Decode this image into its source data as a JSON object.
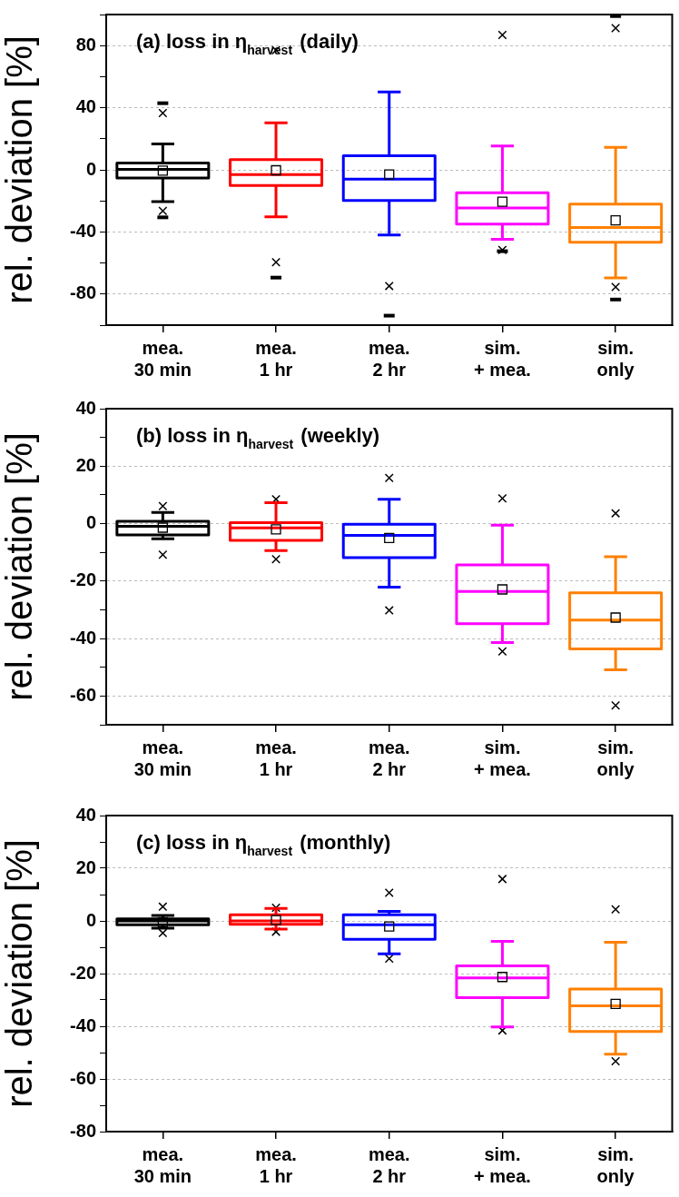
{
  "chart_data": [
    {
      "type": "box",
      "title": "(a) loss in η$_{harvest}$ (daily)",
      "ylabel": "rel. deviation [%]",
      "categories": [
        "mea.\n30 min",
        "mea.\n1 hr",
        "mea.\n2 hr",
        "sim.\n+ mea.",
        "sim.\nonly"
      ],
      "colors": [
        "#000000",
        "#ff0000",
        "#0000ff",
        "#ff00ff",
        "#ff8000"
      ],
      "grid": "y",
      "ylim": [
        -100,
        100
      ],
      "yticks": [
        {
          "value": -100,
          "label": null
        },
        -80,
        {
          "value": -60,
          "label": null
        },
        -40,
        {
          "value": -20,
          "label": null
        },
        0,
        {
          "value": 20,
          "label": null
        },
        40,
        {
          "value": 60,
          "label": null
        },
        80,
        {
          "value": 100,
          "label": null
        }
      ],
      "boxes": [
        {
          "low": -20.5,
          "q1": -5.2,
          "median": 0.3,
          "q3": 4.4,
          "high": 16.7,
          "mean": -0.5,
          "outliers": [
            42.9,
            -30.6
          ]
        },
        {
          "low": -30.3,
          "q1": -10.1,
          "median": -3,
          "q3": 6.6,
          "high": 30.3,
          "mean": -0.3,
          "outliers": [
            -69.4
          ]
        },
        {
          "low": -42,
          "q1": -19.7,
          "median": -6,
          "q3": 9,
          "high": 50.2,
          "mean": -3,
          "outliers": [
            -93.9
          ]
        },
        {
          "low": -44.8,
          "q1": -35,
          "median": -24.6,
          "q3": -14.7,
          "high": 15.3,
          "mean": -20.5,
          "outliers": [
            -52.4
          ]
        },
        {
          "low": -69.6,
          "q1": -46.7,
          "median": -37.1,
          "q3": -22.1,
          "high": 14.5,
          "mean": -32.5,
          "outliers": [
            99,
            -83.5
          ]
        }
      ],
      "series": [
        {
          "type": "scatter",
          "color": "#000000",
          "marker": "cross",
          "x": [
            "mea.\n30 min",
            "mea.\n30 min",
            "mea.\n1 hr",
            "mea.\n1 hr",
            "mea.\n2 hr",
            "sim.\n+ mea.",
            "sim.\n+ mea.",
            "sim.\nonly",
            "sim.\nonly"
          ],
          "values": [
            36.6,
            -26.5,
            77,
            -59.5,
            -74.8,
            86.8,
            -51.6,
            91.2,
            -75.4
          ]
        }
      ]
    },
    {
      "type": "box",
      "title": "(b) loss in η$_{harvest}$ (weekly)",
      "ylabel": "rel. deviation [%]",
      "categories": [
        "mea.\n30 min",
        "mea.\n1 hr",
        "mea.\n2 hr",
        "sim.\n+ mea.",
        "sim.\nonly"
      ],
      "colors": [
        "#000000",
        "#ff0000",
        "#0000ff",
        "#ff00ff",
        "#ff8000"
      ],
      "grid": "y",
      "ylim": [
        -70,
        40
      ],
      "yticks": [
        {
          "value": -70,
          "label": null
        },
        -60,
        {
          "value": -50,
          "label": null
        },
        -40,
        {
          "value": -30,
          "label": null
        },
        -20,
        {
          "value": -10,
          "label": null
        },
        0,
        {
          "value": 10,
          "label": null
        },
        20,
        {
          "value": 30,
          "label": null
        },
        40
      ],
      "boxes": [
        {
          "low": -5.3,
          "q1": -3.9,
          "median": -0.9,
          "q3": 0.8,
          "high": 3.9,
          "mean": -1.4
        },
        {
          "low": -9.4,
          "q1": -5.8,
          "median": -1.5,
          "q3": 0.3,
          "high": 7.3,
          "mean": -2
        },
        {
          "low": -22.1,
          "q1": -11.8,
          "median": -4.1,
          "q3": -0.2,
          "high": 8.5,
          "mean": -5
        },
        {
          "low": -41.4,
          "q1": -34.8,
          "median": -23.6,
          "q3": -14.4,
          "high": -0.5,
          "mean": -22.9
        },
        {
          "low": -50.9,
          "q1": -43.6,
          "median": -33.6,
          "q3": -24.1,
          "high": -11.5,
          "mean": -32.7
        }
      ],
      "series": [
        {
          "type": "scatter",
          "color": "#000000",
          "marker": "cross",
          "x": [
            "mea.\n30 min",
            "mea.\n30 min",
            "mea.\n1 hr",
            "mea.\n1 hr",
            "mea.\n2 hr",
            "mea.\n2 hr",
            "sim.\n+ mea.",
            "sim.\n+ mea.",
            "sim.\nonly",
            "sim.\nonly"
          ],
          "values": [
            6.1,
            -10.8,
            8.5,
            -12.4,
            15.9,
            -30.2,
            8.8,
            -44.5,
            3.6,
            -63.3
          ]
        }
      ]
    },
    {
      "type": "box",
      "title": "(c) loss in η$_{harvest}$ (monthly)",
      "ylabel": "rel. deviation [%]",
      "categories": [
        "mea.\n30 min",
        "mea.\n1 hr",
        "mea.\n2 hr",
        "sim.\n+ mea.",
        "sim.\nonly"
      ],
      "colors": [
        "#000000",
        "#ff0000",
        "#0000ff",
        "#ff00ff",
        "#ff8000"
      ],
      "grid": "y",
      "ylim": [
        -80,
        40
      ],
      "yticks": [
        -80,
        {
          "value": -70,
          "label": null
        },
        -60,
        {
          "value": -50,
          "label": null
        },
        -40,
        {
          "value": -30,
          "label": null
        },
        -20,
        {
          "value": -10,
          "label": null
        },
        0,
        {
          "value": 10,
          "label": null
        },
        20,
        {
          "value": 30,
          "label": null
        },
        40
      ],
      "boxes": [
        {
          "low": -2.8,
          "q1": -1.5,
          "median": 0,
          "q3": 0.8,
          "high": 2.1,
          "mean": -0.5
        },
        {
          "low": -3.1,
          "q1": -1.3,
          "median": 0,
          "q3": 2.3,
          "high": 4.7,
          "mean": 0.3
        },
        {
          "low": -12.5,
          "q1": -7,
          "median": -1.5,
          "q3": 2.3,
          "high": 3.6,
          "mean": -2.1
        },
        {
          "low": -40.3,
          "q1": -29.1,
          "median": -21.6,
          "q3": -17.1,
          "high": -7.8,
          "mean": -21.3
        },
        {
          "low": -50.6,
          "q1": -42,
          "median": -32.2,
          "q3": -25.9,
          "high": -8.1,
          "mean": -31.5
        }
      ],
      "series": [
        {
          "type": "scatter",
          "color": "#000000",
          "marker": "cross",
          "x": [
            "mea.\n30 min",
            "mea.\n30 min",
            "mea.\n1 hr",
            "mea.\n1 hr",
            "mea.\n2 hr",
            "mea.\n2 hr",
            "sim.\n+ mea.",
            "sim.\n+ mea.",
            "sim.\nonly",
            "sim.\nonly"
          ],
          "values": [
            5.4,
            -4.6,
            5,
            -4.1,
            10.7,
            -14.3,
            15.9,
            -41.6,
            4.4,
            -53.3
          ]
        }
      ]
    }
  ]
}
